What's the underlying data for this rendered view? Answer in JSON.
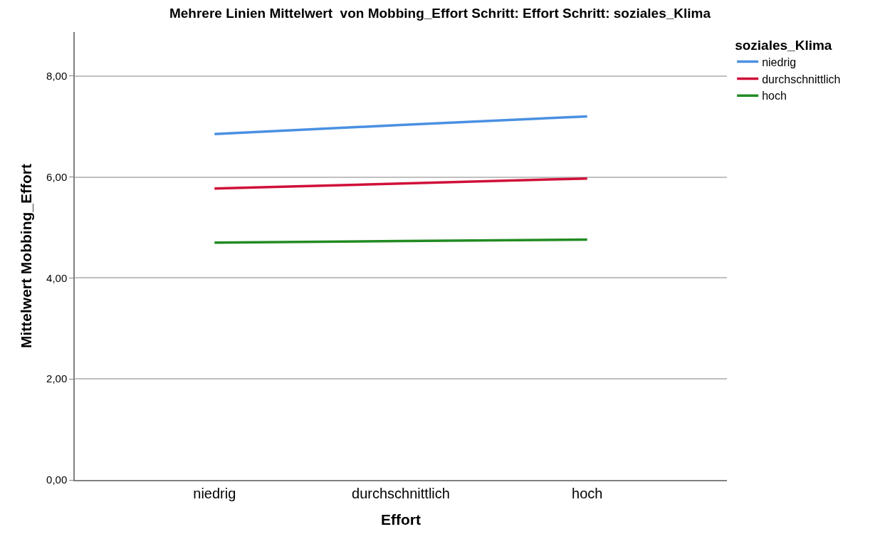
{
  "chart_data": {
    "type": "line",
    "title": "Mehrere Linien Mittelwert  von Mobbing_Effort Schritt: Effort Schritt: soziales_Klima",
    "xlabel": "Effort",
    "ylabel": "Mittelwert Mobbing_Effort",
    "legend_title": "soziales_Klima",
    "categories": [
      "niedrig",
      "durchschnittlich",
      "hoch"
    ],
    "series": [
      {
        "name": "niedrig",
        "color": "#4a90e2",
        "values": [
          6.85,
          7.03,
          7.2
        ]
      },
      {
        "name": "durchschnittlich",
        "color": "#d0103a",
        "values": [
          5.77,
          5.87,
          5.97
        ]
      },
      {
        "name": "hoch",
        "color": "#228b22",
        "values": [
          4.7,
          4.73,
          4.76
        ]
      }
    ],
    "ylim": [
      0,
      8.87
    ],
    "yticks": [
      {
        "value": 0,
        "label": "0,00"
      },
      {
        "value": 2,
        "label": "2,00"
      },
      {
        "value": 4,
        "label": "4,00"
      },
      {
        "value": 6,
        "label": "6,00"
      },
      {
        "value": 8,
        "label": "8,00"
      }
    ],
    "grid": "y",
    "legend": "top right",
    "marker": "none",
    "line_style": "solid"
  }
}
